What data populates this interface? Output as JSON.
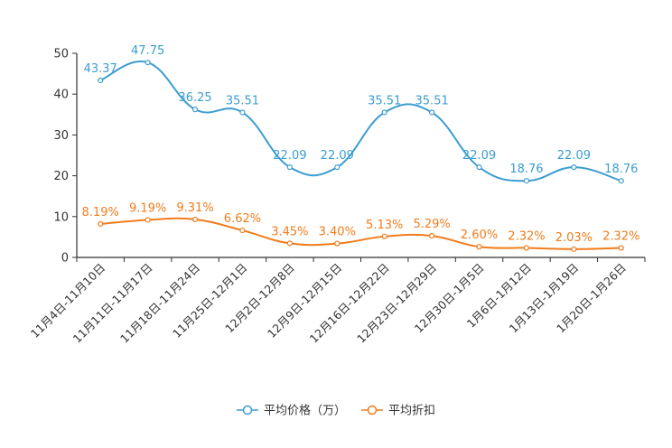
{
  "chart_data": {
    "type": "line",
    "title": "",
    "xlabel": "",
    "ylabel": "",
    "ylim": [
      0,
      50
    ],
    "yticks": [
      0,
      10,
      20,
      30,
      40,
      50
    ],
    "grid": false,
    "legend_position": "bottom-center",
    "categories": [
      "11月4日-11月10日",
      "11月11日-11月17日",
      "11月18日-11月24日",
      "11月25日-12月1日",
      "12月2日-12月8日",
      "12月9日-12月15日",
      "12月16日-12月22日",
      "12月23日-12月29日",
      "12月30日-1月5日",
      "1月6日-1月12日",
      "1月13日-1月19日",
      "1月20日-1月26日"
    ],
    "series": [
      {
        "name": "平均价格（万）",
        "color": "#3c9dd0",
        "values": [
          43.37,
          47.75,
          36.25,
          35.51,
          22.09,
          22.09,
          35.51,
          35.51,
          22.09,
          18.76,
          22.09,
          18.76
        ],
        "labels": [
          "43.37",
          "47.75",
          "36.25",
          "35.51",
          "22.09",
          "22.09",
          "35.51",
          "35.51",
          "22.09",
          "18.76",
          "22.09",
          "18.76"
        ]
      },
      {
        "name": "平均折扣",
        "color": "#f07c1c",
        "values": [
          8.19,
          9.19,
          9.31,
          6.62,
          3.45,
          3.4,
          5.13,
          5.29,
          2.6,
          2.32,
          2.03,
          2.32
        ],
        "labels": [
          "8.19%",
          "9.19%",
          "9.31%",
          "6.62%",
          "3.45%",
          "3.40%",
          "5.13%",
          "5.29%",
          "2.60%",
          "2.32%",
          "2.03%",
          "2.32%"
        ]
      }
    ]
  }
}
